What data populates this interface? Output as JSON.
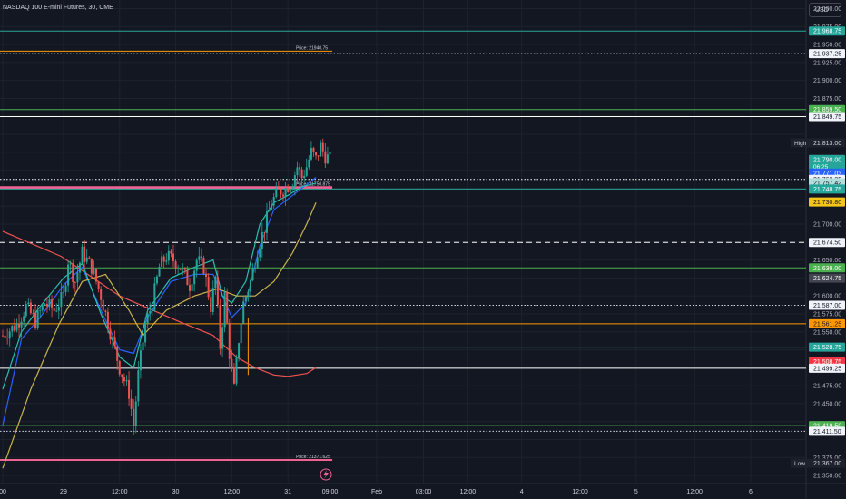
{
  "title": "NASDAQ 100 E-mini Futures, 30, CME",
  "currency": "USD",
  "chart_data": {
    "type": "candlestick",
    "ylim": [
      21340,
      22012
    ],
    "x_ticks": [
      {
        "label": "00",
        "t": 0
      },
      {
        "label": "29",
        "t": 26
      },
      {
        "label": "12:00",
        "t": 50
      },
      {
        "label": "30",
        "t": 74
      },
      {
        "label": "12:00",
        "t": 98
      },
      {
        "label": "31",
        "t": 122
      },
      {
        "label": "09:00",
        "t": 140
      },
      {
        "label": "Feb",
        "t": 160
      },
      {
        "label": "03:00",
        "t": 180
      },
      {
        "label": "12:00",
        "t": 199
      },
      {
        "label": "4",
        "t": 222
      },
      {
        "label": "12:00",
        "t": 247
      },
      {
        "label": "5",
        "t": 271
      },
      {
        "label": "12:00",
        "t": 296
      },
      {
        "label": "6",
        "t": 320
      }
    ],
    "y_ticks": [
      {
        "label": "22,000.00",
        "v": 22000
      },
      {
        "label": "21,975.00",
        "v": 21975
      },
      {
        "label": "21,950.00",
        "v": 21950
      },
      {
        "label": "21,925.00",
        "v": 21925
      },
      {
        "label": "21,900.00",
        "v": 21900
      },
      {
        "label": "21,875.00",
        "v": 21875
      },
      {
        "label": "21,700.00",
        "v": 21700
      },
      {
        "label": "21,650.00",
        "v": 21650
      },
      {
        "label": "21,600.00",
        "v": 21600
      },
      {
        "label": "21,575.00",
        "v": 21575
      },
      {
        "label": "21,550.00",
        "v": 21550
      },
      {
        "label": "21,475.00",
        "v": 21475
      },
      {
        "label": "21,450.00",
        "v": 21450
      },
      {
        "label": "21,375.00",
        "v": 21375
      },
      {
        "label": "21,350.00",
        "v": 21350
      }
    ],
    "price_badges": [
      {
        "label": "21,968.75",
        "v": 21968.75,
        "bg": "#26a69a",
        "fg": "#ffffff"
      },
      {
        "label": "21,937.25",
        "v": 21937.25,
        "bg": "#f0f3fa",
        "fg": "#131722"
      },
      {
        "label": "21,859.50",
        "v": 21859.5,
        "bg": "#4caf50",
        "fg": "#ffffff"
      },
      {
        "label": "21,849.75",
        "v": 21849.75,
        "bg": "#f0f3fa",
        "fg": "#131722"
      },
      {
        "label": "21,813.00",
        "v": 21813,
        "bg": "#1e222d",
        "fg": "#d1d4dc",
        "tag": "High"
      },
      {
        "label": "21,790.00",
        "v": 21790,
        "bg": "#26a69a",
        "fg": "#ffffff",
        "sub": "06:25"
      },
      {
        "label": "21,771.03",
        "v": 21771.03,
        "bg": "#2962ff",
        "fg": "#ffffff"
      },
      {
        "label": "21,762.25",
        "v": 21762.25,
        "bg": "#f0f3fa",
        "fg": "#131722"
      },
      {
        "label": "21,757.42",
        "v": 21757.42,
        "bg": "#b2dfdb",
        "fg": "#131722"
      },
      {
        "label": "21,748.75",
        "v": 21748.75,
        "bg": "#26a69a",
        "fg": "#ffffff"
      },
      {
        "label": "21,730.80",
        "v": 21730.8,
        "bg": "#f5c518",
        "fg": "#131722"
      },
      {
        "label": "21,674.50",
        "v": 21674.5,
        "bg": "#f0f3fa",
        "fg": "#131722"
      },
      {
        "label": "21,639.00",
        "v": 21639,
        "bg": "#4caf50",
        "fg": "#ffffff"
      },
      {
        "label": "21,624.75",
        "v": 21624.75,
        "bg": "#434651",
        "fg": "#ffffff"
      },
      {
        "label": "21,587.00",
        "v": 21587,
        "bg": "#f0f3fa",
        "fg": "#131722"
      },
      {
        "label": "21,561.25",
        "v": 21561.25,
        "bg": "#ff9800",
        "fg": "#131722"
      },
      {
        "label": "21,528.75",
        "v": 21528.75,
        "bg": "#26a69a",
        "fg": "#ffffff"
      },
      {
        "label": "21,508.75",
        "v": 21508.75,
        "bg": "#f23645",
        "fg": "#ffffff"
      },
      {
        "label": "21,499.25",
        "v": 21499.25,
        "bg": "#f0f3fa",
        "fg": "#131722"
      },
      {
        "label": "21,419.50",
        "v": 21419.5,
        "bg": "#4caf50",
        "fg": "#ffffff"
      },
      {
        "label": "21,411.50",
        "v": 21411.5,
        "bg": "#f0f3fa",
        "fg": "#131722"
      },
      {
        "label": "21,367.00",
        "v": 21367,
        "bg": "#1e222d",
        "fg": "#d1d4dc",
        "tag": "Low"
      }
    ],
    "horizontal_lines": [
      {
        "v": 22014,
        "color": "#d1d4dc",
        "style": "dotted"
      },
      {
        "v": 21968.75,
        "color": "#26a69a",
        "style": "solid"
      },
      {
        "v": 21940.75,
        "color": "#ff9800",
        "style": "solid",
        "end_t": 141,
        "label": "Price: 21940.75"
      },
      {
        "v": 21937.25,
        "color": "#d1d4dc",
        "style": "dotted"
      },
      {
        "v": 21859.5,
        "color": "#4caf50",
        "style": "solid"
      },
      {
        "v": 21849.75,
        "color": "#ffffff",
        "style": "solid"
      },
      {
        "v": 21762.25,
        "color": "#ffffff",
        "style": "dotted"
      },
      {
        "v": 21750.875,
        "color": "#f06292",
        "style": "solid",
        "width": 3,
        "end_t": 141,
        "label": "Price: 21750.875"
      },
      {
        "v": 21748.75,
        "color": "#26a69a",
        "style": "solid"
      },
      {
        "v": 21674.5,
        "color": "#ffffff",
        "style": "dashed"
      },
      {
        "v": 21639,
        "color": "#4caf50",
        "style": "solid"
      },
      {
        "v": 21587,
        "color": "#d1d4dc",
        "style": "dotted"
      },
      {
        "v": 21561.25,
        "color": "#ff9800",
        "style": "solid"
      },
      {
        "v": 21528.75,
        "color": "#26a69a",
        "style": "solid"
      },
      {
        "v": 21499.25,
        "color": "#ffffff",
        "style": "solid"
      },
      {
        "v": 21419.5,
        "color": "#4caf50",
        "style": "solid"
      },
      {
        "v": 21411.5,
        "color": "#d1d4dc",
        "style": "dotted"
      },
      {
        "v": 21371.625,
        "color": "#f06292",
        "style": "solid",
        "width": 2,
        "end_t": 141,
        "label": "Price: 21371.625"
      }
    ],
    "vertical_marks": [
      {
        "t": 105,
        "from": 21490,
        "to": 21570,
        "color": "#ff9800"
      }
    ],
    "colors": {
      "up": "#26a69a",
      "down": "#ef5350"
    },
    "candle_path": [
      [
        0,
        21545
      ],
      [
        6,
        21560
      ],
      [
        10,
        21585
      ],
      [
        14,
        21565
      ],
      [
        18,
        21590
      ],
      [
        22,
        21580
      ],
      [
        26,
        21600
      ],
      [
        28,
        21650
      ],
      [
        31,
        21620
      ],
      [
        34,
        21660
      ],
      [
        38,
        21640
      ],
      [
        42,
        21600
      ],
      [
        46,
        21550
      ],
      [
        50,
        21500
      ],
      [
        54,
        21465
      ],
      [
        56,
        21420
      ],
      [
        58,
        21490
      ],
      [
        61,
        21560
      ],
      [
        64,
        21590
      ],
      [
        67,
        21640
      ],
      [
        70,
        21655
      ],
      [
        73,
        21650
      ],
      [
        76,
        21640
      ],
      [
        80,
        21615
      ],
      [
        83,
        21650
      ],
      [
        86,
        21640
      ],
      [
        89,
        21585
      ],
      [
        91,
        21625
      ],
      [
        93,
        21530
      ],
      [
        95,
        21600
      ],
      [
        97,
        21520
      ],
      [
        99,
        21470
      ],
      [
        101,
        21540
      ],
      [
        103,
        21590
      ],
      [
        106,
        21620
      ],
      [
        109,
        21665
      ],
      [
        112,
        21695
      ],
      [
        115,
        21730
      ],
      [
        118,
        21745
      ],
      [
        121,
        21750
      ],
      [
        124,
        21760
      ],
      [
        126,
        21780
      ],
      [
        128,
        21765
      ],
      [
        130,
        21780
      ],
      [
        132,
        21800
      ],
      [
        134,
        21790
      ],
      [
        136,
        21808
      ],
      [
        138,
        21795
      ],
      [
        140,
        21790
      ]
    ],
    "series": [
      {
        "name": "",
        "color": "#ef5350",
        "points": [
          [
            0,
            21690
          ],
          [
            25,
            21655
          ],
          [
            50,
            21600
          ],
          [
            75,
            21565
          ],
          [
            90,
            21545
          ],
          [
            100,
            21515
          ],
          [
            108,
            21500
          ],
          [
            116,
            21490
          ],
          [
            122,
            21488
          ],
          [
            130,
            21492
          ],
          [
            134,
            21500
          ]
        ]
      },
      {
        "name": "",
        "color": "#2962ff",
        "points": [
          [
            0,
            21420
          ],
          [
            8,
            21540
          ],
          [
            16,
            21570
          ],
          [
            26,
            21615
          ],
          [
            34,
            21640
          ],
          [
            42,
            21580
          ],
          [
            50,
            21525
          ],
          [
            56,
            21520
          ],
          [
            62,
            21570
          ],
          [
            72,
            21620
          ],
          [
            82,
            21630
          ],
          [
            90,
            21630
          ],
          [
            94,
            21600
          ],
          [
            98,
            21570
          ],
          [
            104,
            21590
          ],
          [
            110,
            21670
          ],
          [
            116,
            21720
          ],
          [
            122,
            21735
          ],
          [
            128,
            21750
          ],
          [
            134,
            21765
          ]
        ]
      },
      {
        "name": "",
        "color": "#2bc0b0",
        "points": [
          [
            0,
            21470
          ],
          [
            8,
            21550
          ],
          [
            16,
            21585
          ],
          [
            26,
            21625
          ],
          [
            34,
            21645
          ],
          [
            42,
            21575
          ],
          [
            50,
            21515
          ],
          [
            56,
            21500
          ],
          [
            62,
            21580
          ],
          [
            72,
            21625
          ],
          [
            82,
            21640
          ],
          [
            90,
            21650
          ],
          [
            94,
            21600
          ],
          [
            98,
            21590
          ],
          [
            104,
            21620
          ],
          [
            110,
            21700
          ],
          [
            116,
            21730
          ],
          [
            122,
            21740
          ],
          [
            128,
            21752
          ],
          [
            134,
            21757
          ]
        ]
      },
      {
        "name": "",
        "color": "#c9b44a",
        "points": [
          [
            0,
            21360
          ],
          [
            12,
            21470
          ],
          [
            24,
            21560
          ],
          [
            34,
            21620
          ],
          [
            44,
            21630
          ],
          [
            54,
            21580
          ],
          [
            60,
            21545
          ],
          [
            70,
            21580
          ],
          [
            82,
            21600
          ],
          [
            92,
            21610
          ],
          [
            100,
            21600
          ],
          [
            108,
            21600
          ],
          [
            116,
            21620
          ],
          [
            124,
            21660
          ],
          [
            130,
            21700
          ],
          [
            134,
            21730
          ]
        ]
      }
    ]
  }
}
